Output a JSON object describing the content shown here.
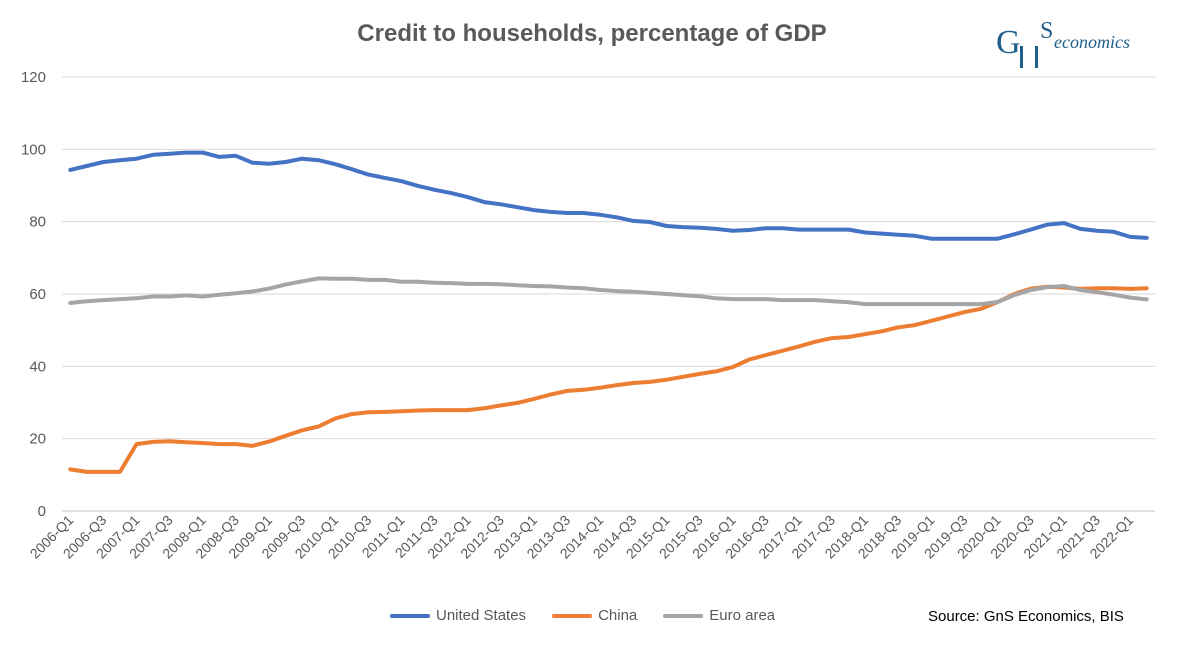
{
  "logo": {
    "text_main": "GnS",
    "text_sub": "economics"
  },
  "source": "Source: GnS Economics, BIS",
  "colors": {
    "us": "#4472c4",
    "china": "#ed7d31",
    "euro": "#a5a5a5",
    "grid": "#d9d9d9"
  },
  "chart_data": {
    "type": "line",
    "title": "Credit to households, percentage of GDP",
    "xlabel": "",
    "ylabel": "",
    "ylim": [
      0,
      120
    ],
    "yticks": [
      0,
      20,
      40,
      60,
      80,
      100,
      120
    ],
    "grid": true,
    "legend_position": "bottom",
    "x": [
      "2006-Q1",
      "2006-Q2",
      "2006-Q3",
      "2006-Q4",
      "2007-Q1",
      "2007-Q2",
      "2007-Q3",
      "2007-Q4",
      "2008-Q1",
      "2008-Q2",
      "2008-Q3",
      "2008-Q4",
      "2009-Q1",
      "2009-Q2",
      "2009-Q3",
      "2009-Q4",
      "2010-Q1",
      "2010-Q2",
      "2010-Q3",
      "2010-Q4",
      "2011-Q1",
      "2011-Q2",
      "2011-Q3",
      "2011-Q4",
      "2012-Q1",
      "2012-Q2",
      "2012-Q3",
      "2012-Q4",
      "2013-Q1",
      "2013-Q2",
      "2013-Q3",
      "2013-Q4",
      "2014-Q1",
      "2014-Q2",
      "2014-Q3",
      "2014-Q4",
      "2015-Q1",
      "2015-Q2",
      "2015-Q3",
      "2015-Q4",
      "2016-Q1",
      "2016-Q2",
      "2016-Q3",
      "2016-Q4",
      "2017-Q1",
      "2017-Q2",
      "2017-Q3",
      "2017-Q4",
      "2018-Q1",
      "2018-Q2",
      "2018-Q3",
      "2018-Q4",
      "2019-Q1",
      "2019-Q2",
      "2019-Q3",
      "2019-Q4",
      "2020-Q1",
      "2020-Q2",
      "2020-Q3",
      "2020-Q4",
      "2021-Q1",
      "2021-Q2",
      "2021-Q3",
      "2021-Q4",
      "2022-Q1",
      "2022-Q2"
    ],
    "xtick_labels": [
      "2006-Q1",
      "2006-Q3",
      "2007-Q1",
      "2007-Q3",
      "2008-Q1",
      "2008-Q3",
      "2009-Q1",
      "2009-Q3",
      "2010-Q1",
      "2010-Q3",
      "2011-Q1",
      "2011-Q3",
      "2012-Q1",
      "2012-Q3",
      "2013-Q1",
      "2013-Q3",
      "2014-Q1",
      "2014-Q3",
      "2015-Q1",
      "2015-Q3",
      "2016-Q1",
      "2016-Q3",
      "2017-Q1",
      "2017-Q3",
      "2018-Q1",
      "2018-Q3",
      "2019-Q1",
      "2019-Q3",
      "2020-Q1",
      "2020-Q3",
      "2021-Q1",
      "2021-Q3",
      "2022-Q1"
    ],
    "series": [
      {
        "name": "United States",
        "values": [
          94.3,
          95.4,
          96.5,
          97.0,
          97.4,
          98.5,
          98.8,
          99.1,
          99.1,
          97.9,
          98.2,
          96.3,
          96.0,
          96.5,
          97.4,
          97.0,
          95.9,
          94.5,
          93.0,
          92.1,
          91.2,
          89.9,
          88.8,
          87.9,
          86.8,
          85.4,
          84.8,
          84.0,
          83.2,
          82.7,
          82.4,
          82.4,
          81.9,
          81.2,
          80.2,
          79.9,
          78.8,
          78.5,
          78.3,
          78.0,
          77.5,
          77.7,
          78.2,
          78.2,
          77.8,
          77.8,
          77.8,
          77.8,
          77.0,
          76.7,
          76.4,
          76.1,
          75.3,
          75.3,
          75.3,
          75.3,
          75.3,
          76.5,
          77.8,
          79.2,
          79.6,
          78.0,
          77.5,
          77.2,
          75.8,
          75.5
        ]
      },
      {
        "name": "China",
        "values": [
          11.5,
          10.8,
          10.8,
          10.8,
          18.5,
          19.1,
          19.3,
          19.0,
          18.8,
          18.5,
          18.5,
          18.0,
          19.2,
          20.8,
          22.3,
          23.4,
          25.6,
          26.8,
          27.3,
          27.4,
          27.6,
          27.8,
          27.9,
          27.9,
          27.9,
          28.4,
          29.2,
          29.9,
          31.0,
          32.2,
          33.2,
          33.5,
          34.1,
          34.8,
          35.4,
          35.7,
          36.3,
          37.1,
          37.9,
          38.6,
          39.8,
          41.9,
          43.1,
          44.3,
          45.5,
          46.8,
          47.8,
          48.1,
          48.9,
          49.7,
          50.8,
          51.4,
          52.6,
          53.8,
          55.0,
          55.9,
          57.8,
          60.0,
          61.5,
          62.0,
          61.8,
          61.4,
          61.6,
          61.6,
          61.4,
          61.6
        ]
      },
      {
        "name": "Euro area",
        "values": [
          57.5,
          58.0,
          58.3,
          58.6,
          58.8,
          59.3,
          59.3,
          59.6,
          59.3,
          59.8,
          60.2,
          60.7,
          61.5,
          62.6,
          63.5,
          64.3,
          64.2,
          64.2,
          63.9,
          63.9,
          63.4,
          63.4,
          63.1,
          63.0,
          62.8,
          62.8,
          62.7,
          62.4,
          62.2,
          62.1,
          61.8,
          61.6,
          61.1,
          60.8,
          60.6,
          60.3,
          60.0,
          59.7,
          59.4,
          58.8,
          58.6,
          58.6,
          58.6,
          58.3,
          58.3,
          58.3,
          58.0,
          57.7,
          57.2,
          57.2,
          57.2,
          57.2,
          57.2,
          57.2,
          57.2,
          57.2,
          57.8,
          59.7,
          61.1,
          61.9,
          62.2,
          61.1,
          60.5,
          59.8,
          59.0,
          58.5
        ]
      }
    ]
  }
}
